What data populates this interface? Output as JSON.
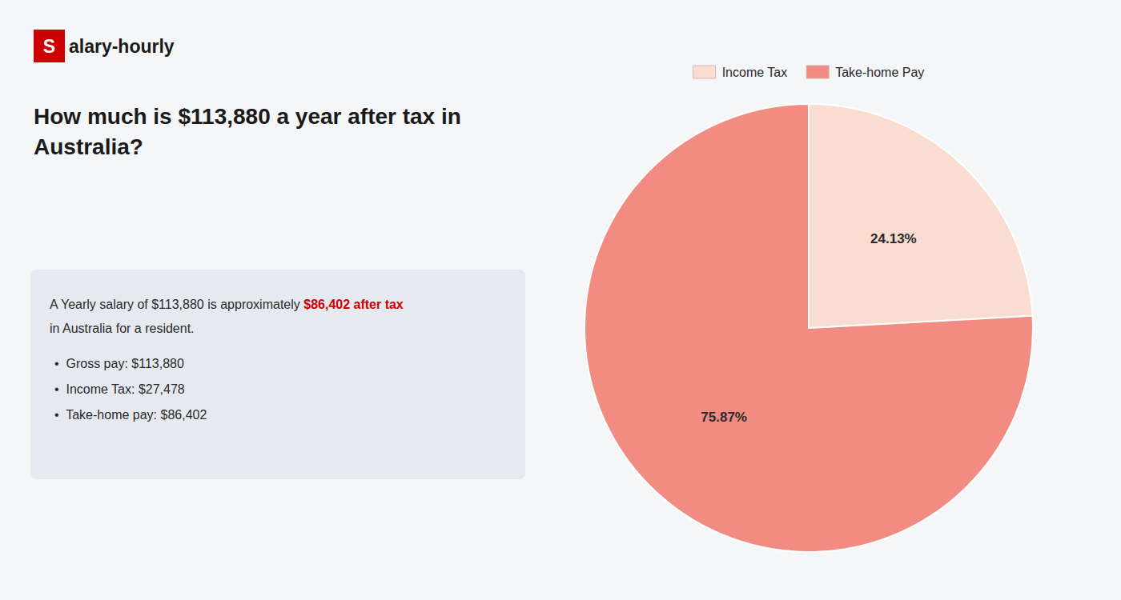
{
  "chart_data": {
    "type": "pie",
    "title": "How much is $113,880 a year after tax in\nAustralia?",
    "categories": [
      "Income Tax",
      "Take-home Pay"
    ],
    "values": [
      24.13,
      75.87
    ],
    "value_labels": [
      "24.13%",
      "75.87%"
    ],
    "colors": [
      "#f9ddd0",
      "#f28b82"
    ],
    "data_labels": true,
    "legend": "top",
    "annotations": [
      {
        "text": "S"
      },
      {
        "text": "alary-hourly"
      },
      {
        "text": "A Yearly salary of $113,880 is approximately "
      },
      {
        "text": "$86,402 after tax",
        "color": "#cc0000"
      },
      {
        "text": "in Australia for a resident."
      },
      {
        "text": "•  Gross pay: $113,880"
      },
      {
        "text": "•  Income Tax: $27,478"
      },
      {
        "text": "•  Take-home pay: $86,402"
      }
    ]
  }
}
